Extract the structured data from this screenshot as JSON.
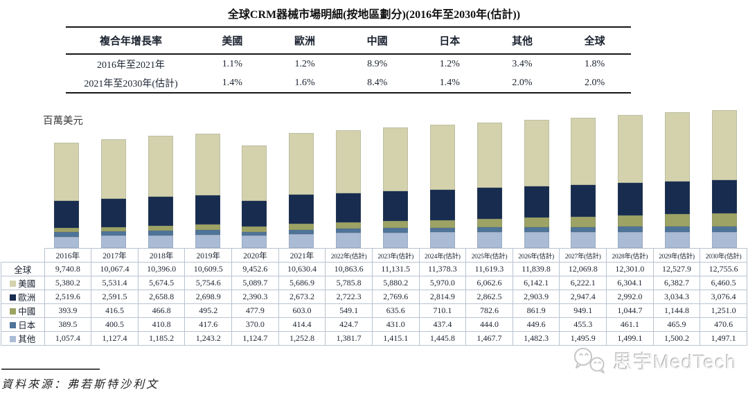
{
  "title": "全球CRM器械市場明細(按地區劃分)(2016年至2030年(估計))",
  "cagr_table": {
    "headers": [
      "複合年增長率",
      "美國",
      "歐洲",
      "中國",
      "日本",
      "其他",
      "全球"
    ],
    "rows": [
      {
        "label": "2016年至2021年",
        "values": [
          "1.1%",
          "1.2%",
          "8.9%",
          "1.2%",
          "3.4%",
          "1.8%"
        ]
      },
      {
        "label": "2021年至2030年(估計)",
        "values": [
          "1.4%",
          "1.6%",
          "8.4%",
          "1.4%",
          "2.0%",
          "2.0%"
        ]
      }
    ]
  },
  "chart_data": {
    "type": "bar",
    "stacked": true,
    "title": "全球CRM器械市場明細(按地區劃分)(2016年至2030年(估計))",
    "unit_label": "百萬美元",
    "xlabel": "",
    "ylabel": "百萬美元",
    "ylim": [
      0,
      13200
    ],
    "grid": false,
    "legend_position": "data-table-left-column",
    "categories": [
      "2016年",
      "2017年",
      "2018年",
      "2019年",
      "2020年",
      "2021年",
      "2022年(估計)",
      "2023年(估計)",
      "2024年(估計)",
      "2025年(估計)",
      "2026年(估計)",
      "2027年(估計)",
      "2028年(估計)",
      "2029年(估計)",
      "2030年(估計)"
    ],
    "total": {
      "name": "全球",
      "key": "global",
      "values": [
        9740.8,
        10067.4,
        10396.0,
        10609.5,
        9452.6,
        10630.4,
        10863.6,
        11131.5,
        11378.3,
        11619.3,
        11839.8,
        12069.8,
        12301.0,
        12527.9,
        12755.6
      ]
    },
    "series": [
      {
        "name": "美國",
        "key": "us",
        "color": "#d3d2ad",
        "values": [
          5380.2,
          5531.4,
          5674.5,
          5754.6,
          5089.7,
          5686.9,
          5785.8,
          5880.2,
          5970.0,
          6062.6,
          6142.1,
          6222.1,
          6304.1,
          6382.7,
          6460.5
        ]
      },
      {
        "name": "歐洲",
        "key": "europe",
        "color": "#182c4f",
        "values": [
          2519.6,
          2591.5,
          2658.8,
          2698.9,
          2390.3,
          2673.2,
          2722.3,
          2769.6,
          2814.9,
          2862.5,
          2903.9,
          2947.4,
          2992.0,
          3034.3,
          3076.4
        ]
      },
      {
        "name": "中國",
        "key": "china",
        "color": "#9da364",
        "values": [
          393.9,
          416.5,
          466.8,
          495.2,
          477.9,
          603.0,
          549.1,
          635.6,
          710.1,
          782.6,
          861.9,
          949.1,
          1044.7,
          1144.8,
          1251.0
        ]
      },
      {
        "name": "日本",
        "key": "japan",
        "color": "#4f7499",
        "values": [
          389.5,
          400.5,
          410.8,
          417.6,
          370.0,
          414.4,
          424.7,
          431.0,
          437.4,
          444.0,
          449.6,
          455.3,
          461.1,
          465.9,
          470.6
        ]
      },
      {
        "name": "其他",
        "key": "others",
        "color": "#aabbd6",
        "values": [
          1057.4,
          1127.4,
          1185.2,
          1243.2,
          1124.7,
          1252.8,
          1381.7,
          1415.1,
          1445.8,
          1467.7,
          1482.3,
          1495.9,
          1499.1,
          1500.2,
          1497.1
        ]
      }
    ],
    "stack_order_bottom_to_top": [
      "其他",
      "日本",
      "中國",
      "歐洲",
      "美國"
    ]
  },
  "source": "資料來源：弗若斯特沙利文",
  "watermark": {
    "text": "思宇MedTech",
    "icon": "wechat-icon",
    "color": "#d9d9d9"
  }
}
